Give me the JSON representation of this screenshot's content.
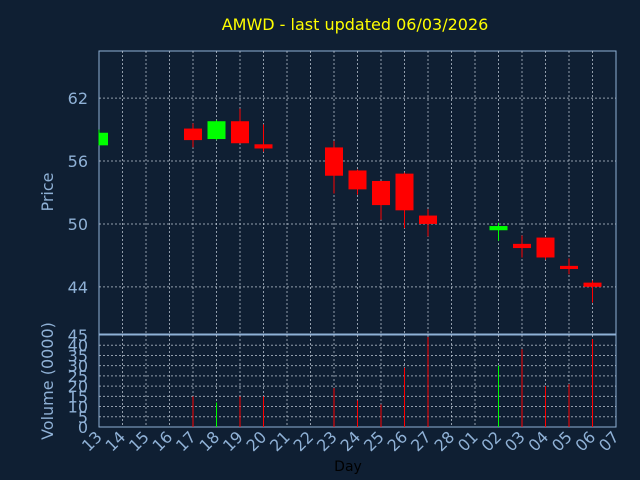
{
  "chart_data": {
    "type": "candlestick",
    "title": "AMWD - last updated 06/03/2026",
    "price_axis": {
      "label": "Price",
      "ylim": [
        39.5,
        66.5
      ],
      "ticks": [
        44,
        50,
        56,
        62
      ],
      "grid": true
    },
    "volume_axis": {
      "label": "Volume (0000)",
      "ylim": [
        0,
        45
      ],
      "ticks": [
        0,
        5,
        10,
        15,
        20,
        25,
        30,
        35,
        40,
        45
      ],
      "grid": true
    },
    "x_axis": {
      "label": "Day",
      "tick_labels": [
        "13",
        "14",
        "15",
        "16",
        "17",
        "18",
        "19",
        "20",
        "21",
        "22",
        "23",
        "24",
        "25",
        "26",
        "27",
        "28",
        "01",
        "02",
        "03",
        "04",
        "05",
        "06",
        "07"
      ]
    },
    "colors": {
      "up": "#00ff00",
      "down": "#ff0000",
      "title": "#ffff00",
      "axis_text": "#8fb1d6",
      "background": "#0f1f33"
    },
    "candles": [
      {
        "day": "13",
        "open": 57.5,
        "high": 59.0,
        "low": 57.5,
        "close": 58.7,
        "volume": 0
      },
      {
        "day": "17",
        "open": 59.1,
        "high": 59.6,
        "low": 57.3,
        "close": 58.0,
        "volume": 15
      },
      {
        "day": "18",
        "open": 58.1,
        "high": 59.9,
        "low": 58.0,
        "close": 59.8,
        "volume": 12
      },
      {
        "day": "19",
        "open": 59.8,
        "high": 61.0,
        "low": 57.7,
        "close": 57.7,
        "volume": 15
      },
      {
        "day": "20",
        "open": 57.6,
        "high": 59.5,
        "low": 56.9,
        "close": 57.2,
        "volume": 15
      },
      {
        "day": "23",
        "open": 57.3,
        "high": 57.9,
        "low": 52.9,
        "close": 54.6,
        "volume": 19
      },
      {
        "day": "24",
        "open": 55.1,
        "high": 55.2,
        "low": 52.8,
        "close": 53.3,
        "volume": 13
      },
      {
        "day": "25",
        "open": 54.1,
        "high": 54.1,
        "low": 50.4,
        "close": 51.8,
        "volume": 11
      },
      {
        "day": "26",
        "open": 54.8,
        "high": 54.9,
        "low": 49.6,
        "close": 51.3,
        "volume": 29
      },
      {
        "day": "27",
        "open": 50.8,
        "high": 51.4,
        "low": 48.8,
        "close": 50.0,
        "volume": 44
      },
      {
        "day": "02",
        "open": 49.4,
        "high": 50.1,
        "low": 48.4,
        "close": 49.8,
        "volume": 30
      },
      {
        "day": "03",
        "open": 48.1,
        "high": 48.9,
        "low": 46.8,
        "close": 47.7,
        "volume": 38
      },
      {
        "day": "04",
        "open": 48.7,
        "high": 48.7,
        "low": 46.6,
        "close": 46.8,
        "volume": 20
      },
      {
        "day": "05",
        "open": 46.0,
        "high": 46.7,
        "low": 45.2,
        "close": 45.7,
        "volume": 21
      },
      {
        "day": "06",
        "open": 44.4,
        "high": 44.6,
        "low": 42.5,
        "close": 44.0,
        "volume": 43
      }
    ]
  }
}
